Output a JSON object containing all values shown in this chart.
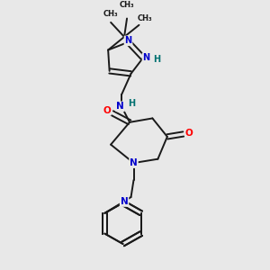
{
  "background_color": "#e8e8e8",
  "bond_color": "#1a1a1a",
  "bond_width": 1.4,
  "N_color": "#0000cc",
  "O_color": "#ff0000",
  "H_color": "#007070",
  "figsize": [
    3.0,
    3.0
  ],
  "dpi": 100,
  "xlim": [
    0,
    10
  ],
  "ylim": [
    0,
    10
  ]
}
